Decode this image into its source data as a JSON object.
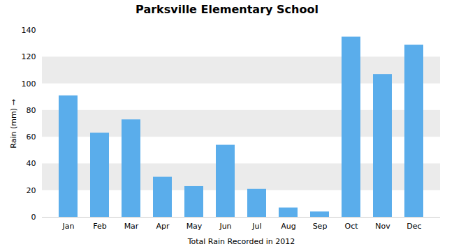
{
  "chart_data": {
    "type": "bar",
    "title": "Parksville Elementary School",
    "xlabel": "Total Rain Recorded in 2012",
    "ylabel": "Rain (mm)",
    "categories": [
      "Jan",
      "Feb",
      "Mar",
      "Apr",
      "May",
      "Jun",
      "Jul",
      "Aug",
      "Sep",
      "Oct",
      "Nov",
      "Dec"
    ],
    "values": [
      91,
      63,
      73,
      30,
      23,
      54,
      21,
      7,
      4,
      135,
      107,
      129
    ],
    "color": "#5aadeb",
    "ylim": [
      0,
      140
    ],
    "yticks": [
      0,
      20,
      40,
      60,
      80,
      100,
      120,
      140
    ],
    "grid": true
  }
}
